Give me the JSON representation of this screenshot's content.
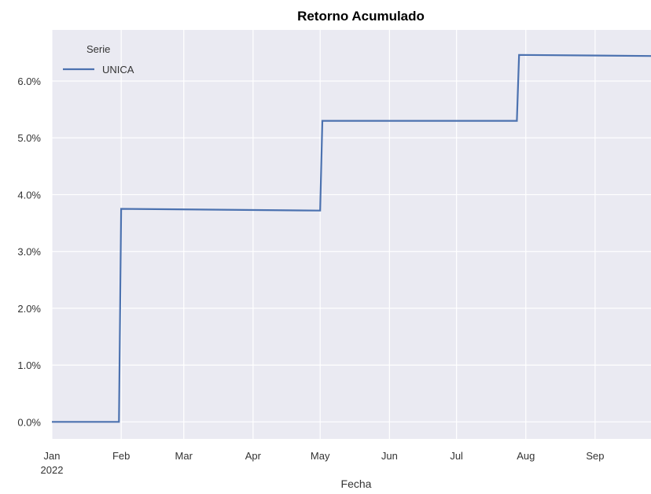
{
  "chart_data": {
    "type": "line",
    "title": "Retorno Acumulado",
    "xlabel": "Fecha",
    "ylabel": "",
    "x_ticks": [
      "Jan",
      "Feb",
      "Mar",
      "Apr",
      "May",
      "Jun",
      "Jul",
      "Aug",
      "Sep"
    ],
    "x_year_label": "2022",
    "y_ticks": [
      "0.0%",
      "1.0%",
      "2.0%",
      "3.0%",
      "4.0%",
      "5.0%",
      "6.0%"
    ],
    "ylim": [
      -0.3,
      6.9
    ],
    "xlim": [
      "2022-01-01",
      "2022-09-26"
    ],
    "legend": {
      "title": "Serie",
      "position": "top-left"
    },
    "grid": true,
    "series": [
      {
        "name": "UNICA",
        "color": "#4c72b0",
        "points": [
          [
            "2022-01-01",
            0.0
          ],
          [
            "2022-01-31",
            0.0
          ],
          [
            "2022-02-01",
            3.75
          ],
          [
            "2022-05-01",
            3.72
          ],
          [
            "2022-05-02",
            5.3
          ],
          [
            "2022-07-28",
            5.3
          ],
          [
            "2022-07-29",
            6.46
          ],
          [
            "2022-09-26",
            6.44
          ]
        ]
      }
    ]
  }
}
